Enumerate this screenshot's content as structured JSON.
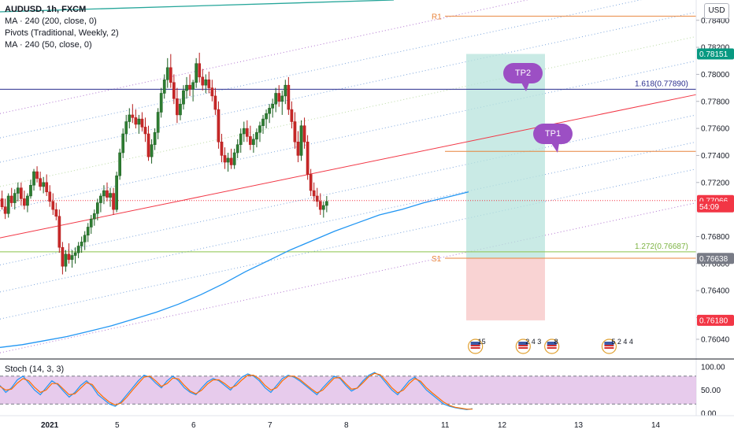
{
  "legend": {
    "symbol": "AUDUSD, 1h, FXCM",
    "ma200": "MA · 240 (200, close, 0)",
    "pivots": "Pivots (Traditional, Weekly, 2)",
    "ma50": "MA · 240 (50, close, 0)"
  },
  "currency_button": "USD",
  "stoch_label": "Stoch (14, 3, 3)",
  "chart_data": {
    "type": "candlestick",
    "price_axis": {
      "min": 0.759,
      "max": 0.7855,
      "ticks": [
        "0.78400",
        "0.78200",
        "0.78000",
        "0.77800",
        "0.77600",
        "0.77400",
        "0.77200",
        "0.76800",
        "0.76600",
        "0.76400",
        "0.76200",
        "0.76040"
      ],
      "tick_values": [
        0.784,
        0.782,
        0.78,
        0.778,
        0.776,
        0.774,
        0.772,
        0.768,
        0.766,
        0.764,
        0.762,
        0.7604
      ]
    },
    "tags": [
      {
        "label": "0.78151",
        "value": 0.78151,
        "color": "#089981"
      },
      {
        "label": "0.77066",
        "value": 0.77066,
        "color": "#f23645"
      },
      {
        "label": "54:09",
        "value": 0.7702,
        "color": "#f23645"
      },
      {
        "label": "0.76638",
        "value": 0.76638,
        "color": "#787b86"
      },
      {
        "label": "0.76180",
        "value": 0.7618,
        "color": "#f23645"
      }
    ],
    "x_axis": {
      "labels": [
        "2021",
        "5",
        "6",
        "7",
        "8",
        "11",
        "12",
        "13",
        "14"
      ],
      "positions": [
        0,
        24,
        48,
        72,
        96,
        120,
        144,
        168,
        192
      ]
    },
    "candles": [
      [
        0.77,
        0.7706,
        0.7696,
        0.7703
      ],
      [
        0.7703,
        0.7707,
        0.7698,
        0.7701
      ],
      [
        0.7701,
        0.7706,
        0.7699,
        0.7704
      ],
      [
        0.7704,
        0.771,
        0.77,
        0.7707
      ],
      [
        0.7707,
        0.7712,
        0.7702,
        0.7705
      ],
      [
        0.7705,
        0.771,
        0.77,
        0.7703
      ],
      [
        0.7703,
        0.7714,
        0.7701,
        0.7712
      ],
      [
        0.7712,
        0.7722,
        0.7708,
        0.772
      ],
      [
        0.772,
        0.7736,
        0.7716,
        0.7734
      ],
      [
        0.7734,
        0.7738,
        0.7722,
        0.7725
      ],
      [
        0.7725,
        0.773,
        0.7712,
        0.7715
      ],
      [
        0.7715,
        0.772,
        0.7706,
        0.7709
      ],
      [
        0.7709,
        0.7715,
        0.77,
        0.7703
      ],
      [
        0.7703,
        0.7712,
        0.7698,
        0.7708
      ],
      [
        0.7708,
        0.7714,
        0.77,
        0.7702
      ],
      [
        0.7702,
        0.7708,
        0.7693,
        0.7697
      ],
      [
        0.7697,
        0.7712,
        0.7694,
        0.771
      ],
      [
        0.771,
        0.7716,
        0.7702,
        0.7705
      ],
      [
        0.7705,
        0.7715,
        0.77,
        0.7712
      ],
      [
        0.7712,
        0.772,
        0.7706,
        0.7716
      ],
      [
        0.7716,
        0.772,
        0.7703,
        0.7708
      ],
      [
        0.7708,
        0.7714,
        0.77,
        0.7703
      ],
      [
        0.7703,
        0.7712,
        0.7698,
        0.771
      ],
      [
        0.771,
        0.7722,
        0.7708,
        0.7718
      ],
      [
        0.7718,
        0.773,
        0.7714,
        0.7728
      ],
      [
        0.7728,
        0.7732,
        0.772,
        0.7723
      ],
      [
        0.7723,
        0.7728,
        0.7714,
        0.7717
      ],
      [
        0.7717,
        0.7724,
        0.7712,
        0.772
      ],
      [
        0.772,
        0.7726,
        0.771,
        0.7713
      ],
      [
        0.7713,
        0.7718,
        0.7702,
        0.7706
      ],
      [
        0.7706,
        0.7712,
        0.7696,
        0.77
      ],
      [
        0.77,
        0.7705,
        0.7692,
        0.7695
      ],
      [
        0.7695,
        0.77,
        0.7668,
        0.7672
      ],
      [
        0.7672,
        0.7676,
        0.7652,
        0.7658
      ],
      [
        0.7658,
        0.767,
        0.7654,
        0.7667
      ],
      [
        0.7667,
        0.7675,
        0.766,
        0.7663
      ],
      [
        0.7663,
        0.767,
        0.7657,
        0.7666
      ],
      [
        0.7666,
        0.7672,
        0.766,
        0.7668
      ],
      [
        0.7668,
        0.7676,
        0.7664,
        0.7673
      ],
      [
        0.7673,
        0.768,
        0.7668,
        0.7676
      ],
      [
        0.7676,
        0.7684,
        0.767,
        0.7681
      ],
      [
        0.7681,
        0.769,
        0.7676,
        0.7687
      ],
      [
        0.7687,
        0.7696,
        0.7682,
        0.7693
      ],
      [
        0.7693,
        0.77,
        0.7688,
        0.7697
      ],
      [
        0.7697,
        0.7708,
        0.7692,
        0.7705
      ],
      [
        0.7705,
        0.7712,
        0.7698,
        0.771
      ],
      [
        0.771,
        0.7718,
        0.7704,
        0.7714
      ],
      [
        0.7714,
        0.772,
        0.7706,
        0.7709
      ],
      [
        0.7709,
        0.7716,
        0.7702,
        0.7712
      ],
      [
        0.7712,
        0.7716,
        0.7696,
        0.77
      ],
      [
        0.77,
        0.7728,
        0.7698,
        0.7725
      ],
      [
        0.7725,
        0.7745,
        0.7722,
        0.7742
      ],
      [
        0.7742,
        0.776,
        0.7738,
        0.7756
      ],
      [
        0.7756,
        0.777,
        0.775,
        0.7765
      ],
      [
        0.7765,
        0.7775,
        0.776,
        0.777
      ],
      [
        0.777,
        0.7778,
        0.7764,
        0.7768
      ],
      [
        0.7768,
        0.7774,
        0.776,
        0.7763
      ],
      [
        0.7763,
        0.777,
        0.7756,
        0.7767
      ],
      [
        0.7767,
        0.7772,
        0.7758,
        0.7761
      ],
      [
        0.7761,
        0.7768,
        0.775,
        0.7756
      ],
      [
        0.7756,
        0.7762,
        0.7736,
        0.7739
      ],
      [
        0.7739,
        0.7752,
        0.7734,
        0.7748
      ],
      [
        0.7748,
        0.776,
        0.7744,
        0.7757
      ],
      [
        0.7757,
        0.7775,
        0.7752,
        0.7772
      ],
      [
        0.7772,
        0.779,
        0.7768,
        0.7786
      ],
      [
        0.7786,
        0.78,
        0.7782,
        0.7796
      ],
      [
        0.7796,
        0.7812,
        0.779,
        0.7805
      ],
      [
        0.7805,
        0.7815,
        0.779,
        0.7794
      ],
      [
        0.7794,
        0.78,
        0.7778,
        0.7782
      ],
      [
        0.7782,
        0.779,
        0.7764,
        0.777
      ],
      [
        0.777,
        0.7782,
        0.7766,
        0.7778
      ],
      [
        0.7778,
        0.7792,
        0.7774,
        0.7788
      ],
      [
        0.7788,
        0.7798,
        0.7782,
        0.7792
      ],
      [
        0.7792,
        0.78,
        0.7784,
        0.7789
      ],
      [
        0.7789,
        0.7796,
        0.778,
        0.7794
      ],
      [
        0.7794,
        0.7812,
        0.779,
        0.7808
      ],
      [
        0.7808,
        0.7816,
        0.7794,
        0.7798
      ],
      [
        0.7798,
        0.7804,
        0.7788,
        0.7792
      ],
      [
        0.7792,
        0.78,
        0.7786,
        0.7796
      ],
      [
        0.7796,
        0.7802,
        0.7786,
        0.779
      ],
      [
        0.779,
        0.7796,
        0.778,
        0.7784
      ],
      [
        0.7784,
        0.779,
        0.777,
        0.7774
      ],
      [
        0.7774,
        0.778,
        0.7745,
        0.775
      ],
      [
        0.775,
        0.7756,
        0.7735,
        0.774
      ],
      [
        0.774,
        0.7746,
        0.773,
        0.7735
      ],
      [
        0.7735,
        0.7742,
        0.7728,
        0.7738
      ],
      [
        0.7738,
        0.7745,
        0.773,
        0.7733
      ],
      [
        0.7733,
        0.7745,
        0.773,
        0.7742
      ],
      [
        0.7742,
        0.7752,
        0.7738,
        0.7748
      ],
      [
        0.7748,
        0.776,
        0.7742,
        0.7756
      ],
      [
        0.7756,
        0.7765,
        0.775,
        0.776
      ],
      [
        0.776,
        0.7766,
        0.775,
        0.7754
      ],
      [
        0.7754,
        0.7762,
        0.7744,
        0.7748
      ],
      [
        0.7748,
        0.7756,
        0.7742,
        0.7752
      ],
      [
        0.7752,
        0.776,
        0.7746,
        0.7757
      ],
      [
        0.7757,
        0.7765,
        0.775,
        0.7762
      ],
      [
        0.7762,
        0.777,
        0.7756,
        0.7767
      ],
      [
        0.7767,
        0.7774,
        0.776,
        0.7771
      ],
      [
        0.7771,
        0.7778,
        0.7764,
        0.7775
      ],
      [
        0.7775,
        0.7782,
        0.7768,
        0.7778
      ],
      [
        0.7778,
        0.779,
        0.7772,
        0.7786
      ],
      [
        0.7786,
        0.7792,
        0.7776,
        0.778
      ],
      [
        0.778,
        0.7788,
        0.777,
        0.7784
      ],
      [
        0.7784,
        0.7796,
        0.7778,
        0.7792
      ],
      [
        0.7792,
        0.7798,
        0.777,
        0.7774
      ],
      [
        0.7774,
        0.778,
        0.776,
        0.7765
      ],
      [
        0.7765,
        0.7772,
        0.7745,
        0.775
      ],
      [
        0.775,
        0.7758,
        0.7735,
        0.774
      ],
      [
        0.774,
        0.7766,
        0.7736,
        0.7762
      ],
      [
        0.7762,
        0.7768,
        0.7745,
        0.775
      ],
      [
        0.775,
        0.7755,
        0.7722,
        0.7726
      ],
      [
        0.7726,
        0.773,
        0.771,
        0.7714
      ],
      [
        0.7714,
        0.772,
        0.7706,
        0.771
      ],
      [
        0.771,
        0.7716,
        0.7702,
        0.7706
      ],
      [
        0.7706,
        0.7712,
        0.7696,
        0.77
      ],
      [
        0.77,
        0.7706,
        0.7694,
        0.7703
      ],
      [
        0.7703,
        0.771,
        0.7698,
        0.7706
      ]
    ],
    "ma200": [
      0.7598,
      0.76,
      0.7603,
      0.7606,
      0.761,
      0.7614,
      0.7619,
      0.7624,
      0.763,
      0.7637,
      0.7645,
      0.7654,
      0.7662,
      0.767,
      0.7677,
      0.7684,
      0.769,
      0.7696,
      0.77,
      0.7705,
      0.7709,
      0.7713
    ],
    "trend_lines": {
      "red_channel_start": 0.7679,
      "red_channel_end": 0.7785
    },
    "levels": [
      {
        "name": "R1",
        "value": 0.7843,
        "color": "#e8843c"
      },
      {
        "name": "1.618(0.77890)",
        "value": 0.7789,
        "color": "#2a2e8e"
      },
      {
        "name": "TP1 level",
        "value": 0.7743,
        "color": "#e8843c"
      },
      {
        "name": "1.272(0.76687)",
        "value": 0.76687,
        "color": "#8bc34a"
      },
      {
        "name": "S1",
        "value": 0.7664,
        "color": "#e8843c"
      }
    ],
    "position": {
      "entry": 0.7664,
      "target": 0.78151,
      "stop": 0.7618
    },
    "annotations": [
      "TP2",
      "TP1",
      "R1",
      "S1",
      "1.618(0.77890)",
      "1.272(0.76687)"
    ],
    "event_badges": [
      {
        "label": "15",
        "x": 136
      },
      {
        "label": "2 4 3",
        "x": 151
      },
      {
        "label": "8",
        "x": 160
      },
      {
        "label": "5 2 4 4",
        "x": 178
      }
    ],
    "stoch": {
      "ylim": [
        0,
        100
      ],
      "ticks": [
        "100.00",
        "50.00",
        "0.00"
      ],
      "upper": 80,
      "lower": 20,
      "k": [
        60,
        45,
        55,
        72,
        80,
        65,
        50,
        40,
        55,
        70,
        62,
        48,
        35,
        45,
        60,
        70,
        58,
        40,
        30,
        20,
        15,
        25,
        40,
        55,
        70,
        82,
        78,
        65,
        55,
        70,
        80,
        70,
        55,
        45,
        40,
        55,
        68,
        75,
        70,
        60,
        50,
        65,
        78,
        85,
        80,
        70,
        55,
        45,
        60,
        75,
        82,
        78,
        70,
        60,
        50,
        40,
        55,
        68,
        80,
        75,
        60,
        48,
        55,
        70,
        82,
        88,
        80,
        65,
        50,
        40,
        55,
        70,
        78,
        65,
        50,
        40,
        30,
        20,
        15,
        12,
        10,
        8,
        10
      ],
      "d": [
        58,
        50,
        52,
        65,
        75,
        70,
        56,
        45,
        50,
        64,
        64,
        52,
        40,
        42,
        54,
        66,
        62,
        46,
        34,
        24,
        18,
        22,
        35,
        50,
        64,
        78,
        80,
        70,
        58,
        64,
        76,
        74,
        60,
        48,
        42,
        50,
        63,
        72,
        72,
        64,
        54,
        60,
        72,
        82,
        82,
        74,
        60,
        50,
        55,
        70,
        80,
        80,
        73,
        63,
        53,
        44,
        50,
        63,
        76,
        77,
        64,
        52,
        54,
        66,
        79,
        86,
        83,
        70,
        55,
        44,
        50,
        64,
        75,
        69,
        55,
        44,
        34,
        24,
        17,
        13,
        11,
        9,
        9
      ]
    },
    "title": "AUDUSD, 1h, FXCM"
  }
}
